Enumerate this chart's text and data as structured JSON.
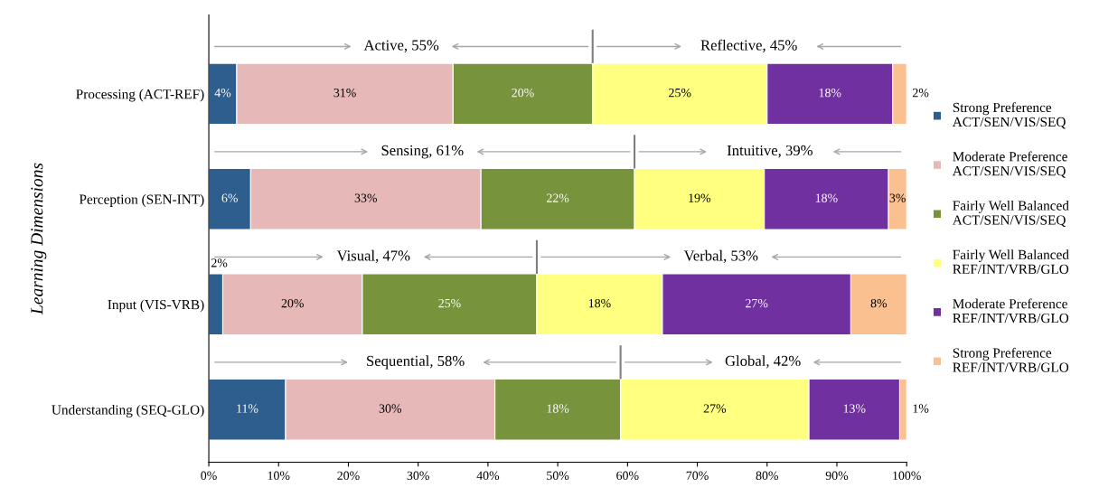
{
  "chart_data": {
    "type": "bar",
    "orientation": "horizontal",
    "stacked": true,
    "ylabel": "Learning Dimensions",
    "categories": [
      "Processing (ACT-REF)",
      "Perception (SEN-INT)",
      "Input (VIS-VRB)",
      "Understanding (SEQ-GLO)"
    ],
    "series": [
      {
        "name": "Strong Preference\nACT/SEN/VIS/SEQ",
        "color": "#2e5e8e",
        "values": [
          4,
          6,
          2,
          11
        ],
        "value_labels": [
          "4%",
          "6%",
          "2%",
          "11%"
        ]
      },
      {
        "name": "Moderate Preference\nACT/SEN/VIS/SEQ",
        "color": "#e6b9b8",
        "values": [
          31,
          33,
          20,
          30
        ],
        "value_labels": [
          "31%",
          "33%",
          "20%",
          "30%"
        ]
      },
      {
        "name": "Fairly Well Balanced\nACT/SEN/VIS/SEQ",
        "color": "#77933c",
        "values": [
          20,
          22,
          25,
          18
        ],
        "value_labels": [
          "20%",
          "22%",
          "25%",
          "18%"
        ]
      },
      {
        "name": "Fairly Well Balanced\nREF/INT/VRB/GLO",
        "color": "#ffff80",
        "values": [
          25,
          18.6,
          18,
          27
        ],
        "value_labels": [
          "25%",
          "19%",
          "18%",
          "27%"
        ]
      },
      {
        "name": "Moderate Preference\nREF/INT/VRB/GLO",
        "color": "#7030a0",
        "values": [
          18,
          17.8,
          27,
          13
        ],
        "value_labels": [
          "18%",
          "18%",
          "27%",
          "13%"
        ]
      },
      {
        "name": "Strong Preference\nREF/INT/VRB/GLO",
        "color": "#fac090",
        "values": [
          2,
          2.6,
          8,
          1
        ],
        "value_labels": [
          "2%",
          "3%",
          "8%",
          "1%"
        ]
      }
    ],
    "annotations": [
      "Active, 55%",
      "Reflective, 45%",
      "Sensing, 61%",
      "Intuitive, 39%",
      "Visual, 47%",
      "Verbal, 53%",
      "Sequential, 58%",
      "Global, 42%"
    ],
    "xlim": [
      0,
      100
    ],
    "xticks": [
      {
        "value": 0,
        "label": "0%"
      },
      {
        "value": 10,
        "label": "10%"
      },
      {
        "value": 20,
        "label": "20%"
      },
      {
        "value": 30,
        "label": "30%"
      },
      {
        "value": 40,
        "label": "40%"
      },
      {
        "value": 50,
        "label": "50%"
      },
      {
        "value": 60,
        "label": "60%"
      },
      {
        "value": 70,
        "label": "70%"
      },
      {
        "value": 80,
        "label": "80%"
      },
      {
        "value": 90,
        "label": "90%"
      },
      {
        "value": 100,
        "label": "100%"
      }
    ],
    "grid": false,
    "legend": "right"
  }
}
